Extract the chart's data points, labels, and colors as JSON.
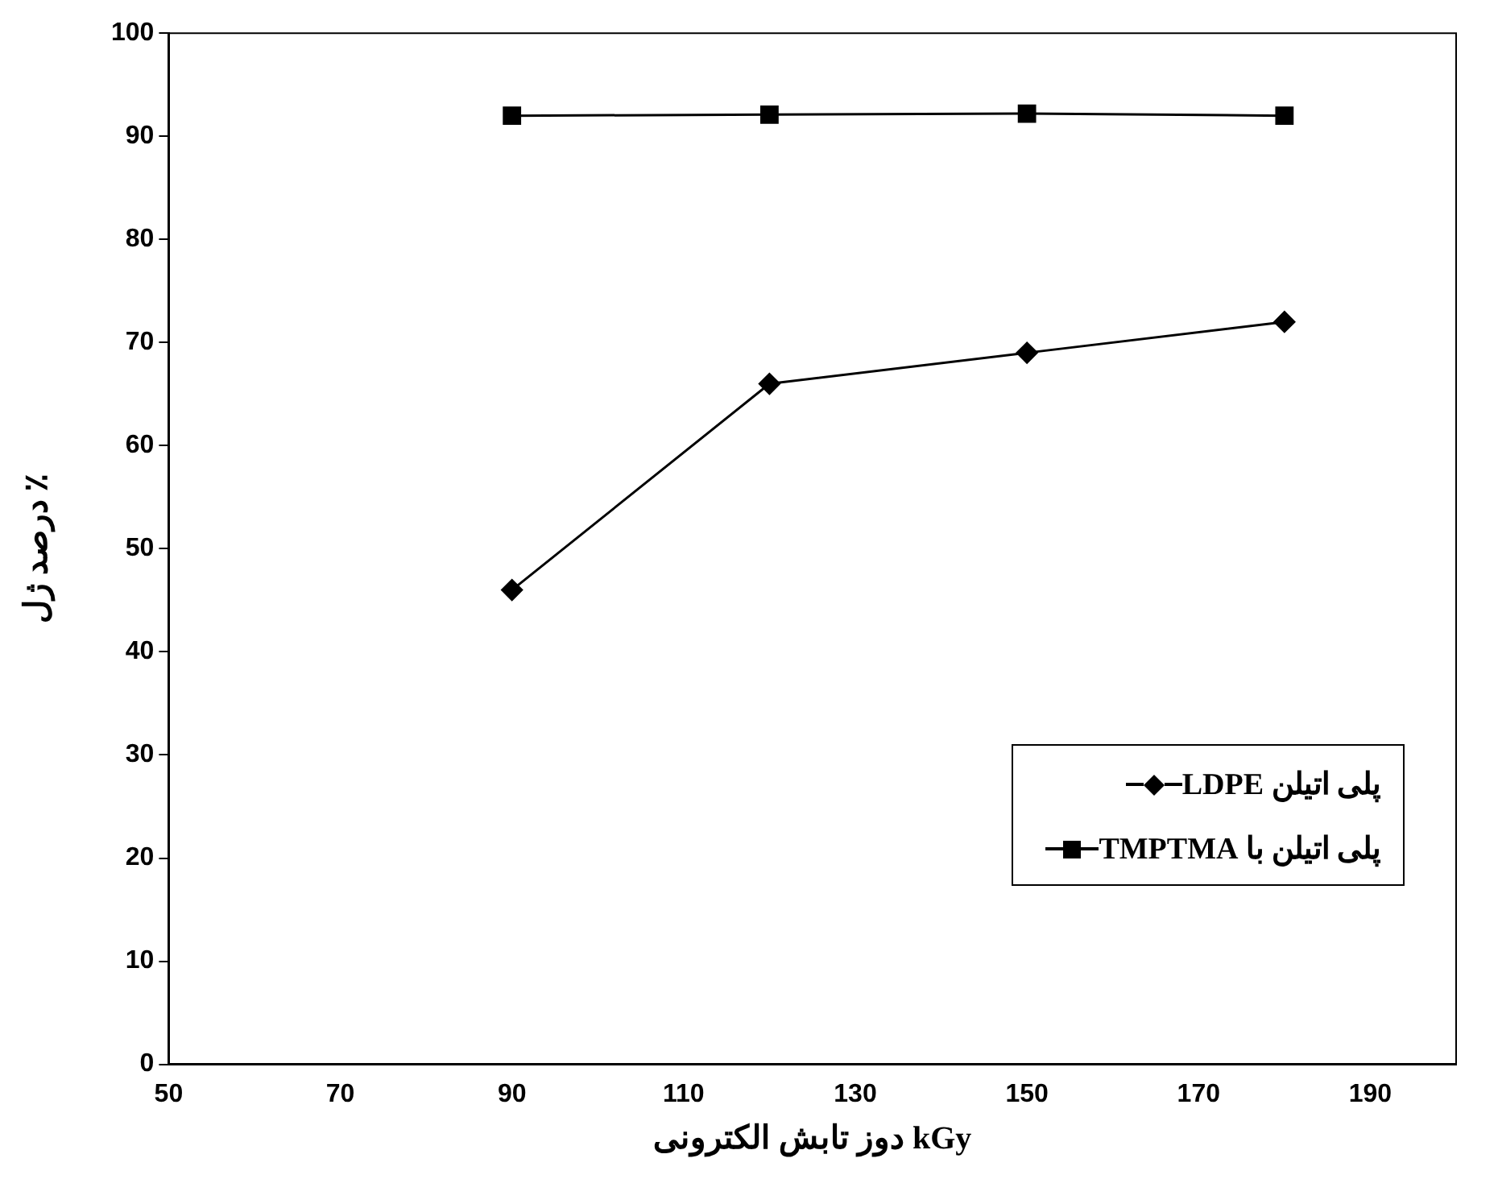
{
  "chart_data": {
    "type": "line",
    "xlabel": "دوز تابش الکترونی kGy",
    "ylabel": "درصد ژل ٪",
    "x": [
      90,
      120,
      150,
      180
    ],
    "series": [
      {
        "name": "پلی اتیلن LDPE",
        "color": "#000000",
        "marker": "diamond",
        "values": [
          46,
          66,
          69,
          72
        ]
      },
      {
        "name": "پلی اتیلن با TMPTMA",
        "color": "#000000",
        "marker": "square",
        "values": [
          92,
          92.1,
          92.2,
          92
        ]
      }
    ],
    "xlim": [
      50,
      200
    ],
    "xticks": [
      50,
      70,
      90,
      110,
      130,
      150,
      170,
      190
    ],
    "ylim": [
      0,
      100
    ],
    "yticks": [
      0,
      10,
      20,
      30,
      40,
      50,
      60,
      70,
      80,
      90,
      100
    ],
    "grid": false,
    "legend": "bottom right",
    "line_style": "solid"
  }
}
